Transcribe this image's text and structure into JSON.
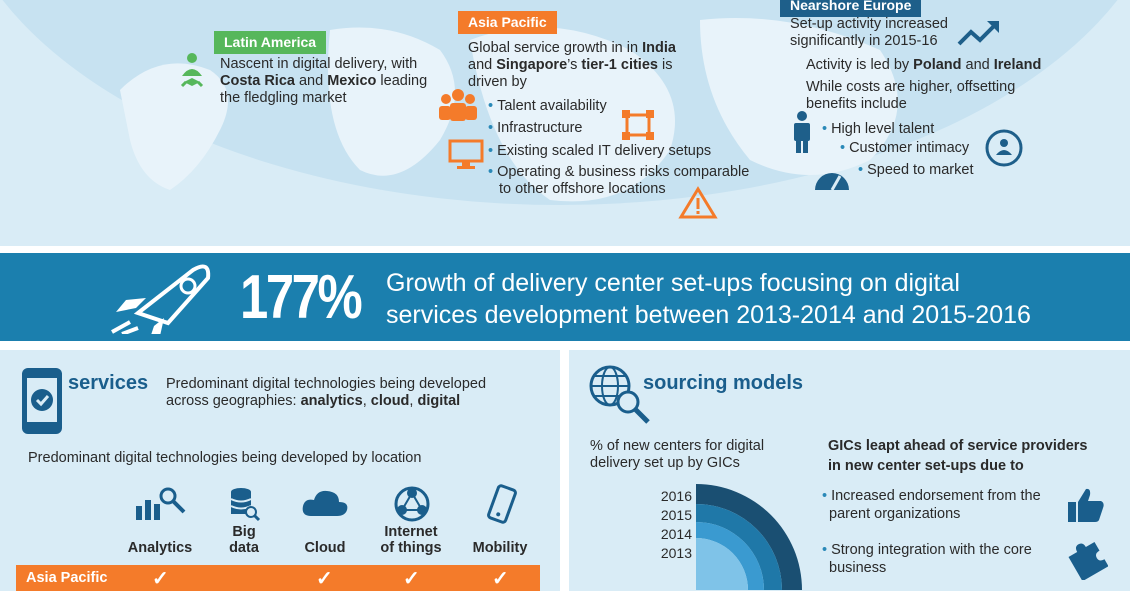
{
  "latin_america": {
    "tag": "Latin America",
    "text_parts": [
      "Nascent in digital delivery, with ",
      "Costa Rica",
      " and ",
      "Mexico",
      " leading the fledgling market"
    ]
  },
  "asia_pacific": {
    "tag": "Asia Pacific",
    "intro_parts": [
      "Global service growth in in ",
      "India",
      " and ",
      "Singapore",
      "’s ",
      "tier-1 cities",
      " is driven by"
    ],
    "bullets": [
      "Talent availability",
      "Infrastructure",
      "Existing scaled IT delivery setups",
      "Operating & business risks comparable",
      "to other offshore locations"
    ]
  },
  "nearshore_europe": {
    "tag": "Nearshore Europe",
    "growth_line1": "Set-up activity increased",
    "growth_line2": "significantly in 2015-16",
    "led_parts": [
      "Activity is led by ",
      "Poland",
      " and ",
      "Ireland"
    ],
    "cost_line1": "While costs are higher, offsetting",
    "cost_line2": "benefits include",
    "bullets": [
      "High level talent",
      "Customer intimacy",
      "Speed to market"
    ]
  },
  "banner": {
    "big": "177%",
    "line1": "Growth of delivery center set-ups focusing on digital",
    "line2": "services development between 2013-2014 and 2015-2016"
  },
  "services": {
    "title": "services",
    "desc_line1": "Predominant digital technologies being developed",
    "desc_parts": [
      "across geographies: ",
      "analytics",
      ", ",
      "cloud",
      ", ",
      "digital"
    ],
    "by_location": "Predominant digital technologies being developed by location",
    "technologies": [
      {
        "label_line1": "",
        "label_line2": "Analytics",
        "icon": "analytics-icon"
      },
      {
        "label_line1": "Big",
        "label_line2": "data",
        "icon": "database-icon"
      },
      {
        "label_line1": "",
        "label_line2": "Cloud",
        "icon": "cloud-icon"
      },
      {
        "label_line1": "Internet",
        "label_line2": "of things",
        "icon": "iot-icon"
      },
      {
        "label_line1": "",
        "label_line2": "Mobility",
        "icon": "mobile-icon"
      }
    ],
    "row": {
      "region": "Asia Pacific",
      "checks": [
        true,
        false,
        true,
        true,
        true
      ],
      "check_glyph": "✓"
    }
  },
  "sourcing": {
    "title": "sourcing models",
    "desc_line1": "% of new centers for digital",
    "desc_line2": "delivery set up by GICs",
    "years": [
      "2016",
      "2015",
      "2014",
      "2013"
    ],
    "head_line1": "GICs leapt ahead of service providers",
    "head_line2": "in new center set-ups due to",
    "reasons": [
      {
        "line1": "Increased endorsement from the",
        "line2": "parent organizations"
      },
      {
        "line1": "Strong integration with the core",
        "line2": "business"
      }
    ]
  },
  "colors": {
    "blue": "#1b7fae",
    "dark_blue": "#1e5f8a",
    "green": "#56b75b",
    "orange": "#f47b2a",
    "light_bg": "#d9ecf6"
  }
}
